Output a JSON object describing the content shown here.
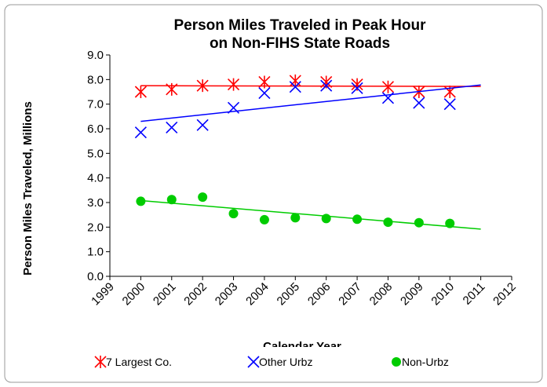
{
  "chart_data": {
    "type": "scatter",
    "title": [
      "Person Miles Traveled in Peak Hour",
      "on Non-FIHS State Roads"
    ],
    "x_label": "Calendar Year",
    "y_label": "Person Miles Traveled, Millions",
    "x": [
      2000,
      2001,
      2002,
      2003,
      2004,
      2005,
      2006,
      2007,
      2008,
      2009,
      2010
    ],
    "series": [
      {
        "name": "7 Largest Co.",
        "color": "#ff0000",
        "marker": "asterisk",
        "values": [
          7.5,
          7.6,
          7.75,
          7.8,
          7.9,
          7.95,
          7.9,
          7.8,
          7.7,
          7.5,
          7.5
        ],
        "trend": {
          "x": [
            2000,
            2011
          ],
          "values": [
            7.75,
            7.72
          ]
        }
      },
      {
        "name": "Other Urbz",
        "color": "#0000ff",
        "marker": "x",
        "values": [
          5.85,
          6.05,
          6.15,
          6.85,
          7.45,
          7.7,
          7.75,
          7.65,
          7.25,
          7.05,
          7.0
        ],
        "trend": {
          "x": [
            2000,
            2011
          ],
          "values": [
            6.3,
            7.78
          ]
        }
      },
      {
        "name": "Non-Urbz",
        "color": "#00cc00",
        "marker": "circle",
        "values": [
          3.05,
          3.12,
          3.22,
          2.55,
          2.3,
          2.38,
          2.35,
          2.32,
          2.2,
          2.18,
          2.15
        ],
        "trend": {
          "x": [
            2000,
            2011
          ],
          "values": [
            3.08,
            1.92
          ]
        }
      }
    ],
    "xlim": [
      1999,
      2012
    ],
    "xticks": [
      1999,
      2000,
      2001,
      2002,
      2003,
      2004,
      2005,
      2006,
      2007,
      2008,
      2009,
      2010,
      2011,
      2012
    ],
    "ylim": [
      0,
      9
    ],
    "yticks": [
      {
        "value": 0,
        "label": "0.0"
      },
      {
        "value": 1,
        "label": "1.0"
      },
      {
        "value": 2,
        "label": "2.0"
      },
      {
        "value": 3,
        "label": "3.0"
      },
      {
        "value": 4,
        "label": "4.0"
      },
      {
        "value": 5,
        "label": "5.0"
      },
      {
        "value": 6,
        "label": "6.0"
      },
      {
        "value": 7,
        "label": "7.0"
      },
      {
        "value": 8,
        "label": "8.0"
      },
      {
        "value": 9,
        "label": "9.0"
      }
    ],
    "grid": false,
    "legend": "bottom"
  }
}
